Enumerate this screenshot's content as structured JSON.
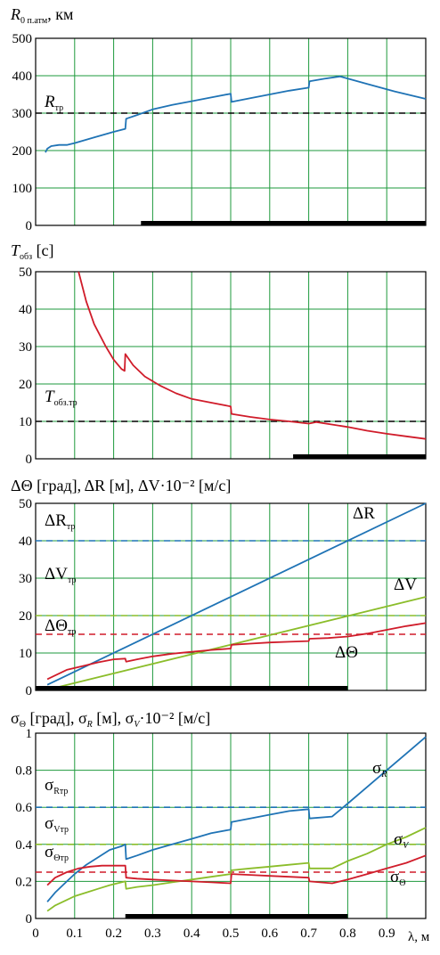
{
  "colors": {
    "grid": "#1e9a3c",
    "blue": "#1f73b5",
    "red": "#d01c2a",
    "green": "#8bbd2a",
    "black": "#000000"
  },
  "chart_data": [
    {
      "type": "line",
      "title": "R",
      "title_sub": "0 п.атм",
      "title_rest": ", км",
      "xlim": [
        0,
        1
      ],
      "ylim": [
        0,
        500
      ],
      "yticks": [
        "0",
        "100",
        "200",
        "300",
        "400",
        "500"
      ],
      "series": [
        {
          "color": "#1f73b5",
          "x": [
            0.025,
            0.03,
            0.04,
            0.06,
            0.08,
            0.1,
            0.15,
            0.2,
            0.23,
            0.232,
            0.26,
            0.3,
            0.35,
            0.4,
            0.45,
            0.5,
            0.502,
            0.55,
            0.6,
            0.65,
            0.7,
            0.702,
            0.74,
            0.78,
            0.85,
            0.92,
            1.0
          ],
          "y": [
            195,
            205,
            212,
            215,
            215,
            220,
            235,
            250,
            258,
            285,
            295,
            310,
            322,
            332,
            342,
            352,
            330,
            340,
            350,
            360,
            368,
            385,
            392,
            398,
            378,
            358,
            338
          ]
        }
      ],
      "hlines": [
        {
          "y": 300,
          "color": "#000000",
          "label": "R",
          "label_sub": "тр"
        }
      ],
      "bar": [
        0.27,
        1.0
      ]
    },
    {
      "type": "line",
      "title": "T",
      "title_sub": "обз",
      "title_rest": " [с]",
      "xlim": [
        0,
        1
      ],
      "ylim": [
        0,
        50
      ],
      "yticks": [
        "0",
        "10",
        "20",
        "30",
        "40",
        "50"
      ],
      "series": [
        {
          "color": "#d01c2a",
          "x": [
            0.11,
            0.13,
            0.15,
            0.18,
            0.2,
            0.22,
            0.228,
            0.23,
            0.25,
            0.28,
            0.32,
            0.36,
            0.4,
            0.45,
            0.5,
            0.502,
            0.55,
            0.6,
            0.65,
            0.7,
            0.72,
            0.8,
            0.85,
            0.9,
            0.95,
            1.0
          ],
          "y": [
            50,
            42,
            36,
            30,
            26.5,
            24,
            23.5,
            28,
            25,
            22,
            19.5,
            17.5,
            16,
            15,
            14,
            12,
            11.2,
            10.5,
            10,
            9.4,
            9.8,
            8.5,
            7.5,
            6.7,
            6,
            5.3
          ]
        }
      ],
      "hlines": [
        {
          "y": 10,
          "color": "#000000",
          "label": "T",
          "label_sub": "обз.тр"
        }
      ],
      "bar": [
        0.66,
        1.0
      ]
    },
    {
      "type": "line",
      "title": "ΔΘ [град], ΔR [м], ΔV·10⁻² [м/с]",
      "xlim": [
        0,
        1
      ],
      "ylim": [
        0,
        50
      ],
      "yticks": [
        "0",
        "10",
        "20",
        "30",
        "40",
        "50"
      ],
      "series": [
        {
          "name": "ΔR",
          "color": "#1f73b5",
          "x": [
            0.03,
            1.0
          ],
          "y": [
            1.5,
            50
          ]
        },
        {
          "name": "ΔV",
          "color": "#8bbd2a",
          "x": [
            0.03,
            1.0
          ],
          "y": [
            0.2,
            25
          ]
        },
        {
          "name": "ΔΘ",
          "color": "#d01c2a",
          "x": [
            0.03,
            0.05,
            0.08,
            0.12,
            0.16,
            0.2,
            0.23,
            0.232,
            0.26,
            0.3,
            0.35,
            0.4,
            0.45,
            0.5,
            0.502,
            0.55,
            0.6,
            0.65,
            0.7,
            0.702,
            0.75,
            0.8,
            0.85,
            0.9,
            0.95,
            1.0
          ],
          "y": [
            3,
            4,
            5.5,
            6.5,
            7.5,
            8.3,
            8.5,
            7.7,
            8.3,
            9.1,
            9.8,
            10.3,
            10.8,
            11.2,
            12.2,
            12.5,
            12.8,
            13.0,
            13.2,
            13.8,
            14.0,
            14.4,
            15.2,
            16.2,
            17.2,
            18
          ]
        }
      ],
      "hlines": [
        {
          "y": 40,
          "color": "#1f73b5",
          "label": "ΔR",
          "label_sub": "тр"
        },
        {
          "y": 20,
          "color": "#8bbd2a",
          "label": "ΔV",
          "label_sub": "тр"
        },
        {
          "y": 15,
          "color": "#d01c2a",
          "label": "ΔΘ",
          "label_sub": "тр"
        }
      ],
      "curve_labels": [
        "ΔR",
        "ΔV",
        "ΔΘ"
      ],
      "bar": [
        0.0,
        0.8
      ]
    },
    {
      "type": "line",
      "title": "σ",
      "title_sub": "Θ",
      "title_rest": " [град], σ",
      "title_sub2": "R",
      "title_rest2": " [м], σ",
      "title_sub3": "V",
      "title_rest3": "·10⁻² [м/с]",
      "xlabel": "λ, м",
      "xlim": [
        0,
        1
      ],
      "ylim": [
        0,
        1
      ],
      "xticks": [
        "0",
        "0.1",
        "0.2",
        "0.3",
        "0.4",
        "0.5",
        "0.6",
        "0.7",
        "0.8",
        "0.9"
      ],
      "yticks": [
        "0",
        "0.2",
        "0.4",
        "0.6",
        "0.8",
        "1"
      ],
      "series": [
        {
          "name": "σR",
          "color": "#1f73b5",
          "x": [
            0.03,
            0.05,
            0.08,
            0.1,
            0.13,
            0.16,
            0.19,
            0.22,
            0.23,
            0.232,
            0.26,
            0.3,
            0.35,
            0.4,
            0.45,
            0.5,
            0.502,
            0.55,
            0.6,
            0.65,
            0.7,
            0.702,
            0.76,
            0.8,
            0.85,
            0.9,
            0.95,
            1.0
          ],
          "y": [
            0.09,
            0.14,
            0.2,
            0.24,
            0.29,
            0.33,
            0.37,
            0.39,
            0.4,
            0.32,
            0.34,
            0.37,
            0.4,
            0.43,
            0.46,
            0.48,
            0.52,
            0.54,
            0.56,
            0.58,
            0.59,
            0.54,
            0.55,
            0.62,
            0.71,
            0.8,
            0.89,
            0.98
          ]
        },
        {
          "name": "σV",
          "color": "#8bbd2a",
          "x": [
            0.03,
            0.05,
            0.08,
            0.1,
            0.13,
            0.16,
            0.19,
            0.22,
            0.23,
            0.232,
            0.26,
            0.3,
            0.35,
            0.4,
            0.45,
            0.5,
            0.502,
            0.55,
            0.6,
            0.65,
            0.7,
            0.702,
            0.76,
            0.8,
            0.85,
            0.9,
            0.95,
            1.0
          ],
          "y": [
            0.04,
            0.07,
            0.1,
            0.12,
            0.14,
            0.16,
            0.18,
            0.195,
            0.2,
            0.16,
            0.17,
            0.18,
            0.195,
            0.21,
            0.225,
            0.24,
            0.26,
            0.27,
            0.28,
            0.29,
            0.3,
            0.27,
            0.27,
            0.31,
            0.35,
            0.4,
            0.44,
            0.49
          ]
        },
        {
          "name": "σΘ",
          "color": "#d01c2a",
          "x": [
            0.03,
            0.05,
            0.08,
            0.11,
            0.14,
            0.17,
            0.2,
            0.23,
            0.232,
            0.26,
            0.3,
            0.35,
            0.4,
            0.45,
            0.5,
            0.502,
            0.55,
            0.6,
            0.65,
            0.7,
            0.702,
            0.76,
            0.8,
            0.85,
            0.9,
            0.95,
            1.0
          ],
          "y": [
            0.18,
            0.22,
            0.25,
            0.27,
            0.28,
            0.285,
            0.285,
            0.285,
            0.22,
            0.215,
            0.21,
            0.205,
            0.2,
            0.195,
            0.19,
            0.24,
            0.235,
            0.23,
            0.225,
            0.22,
            0.2,
            0.19,
            0.21,
            0.24,
            0.27,
            0.3,
            0.34
          ]
        }
      ],
      "hlines": [
        {
          "y": 0.6,
          "color": "#1f73b5",
          "label": "σ",
          "label_sub": "Rтр"
        },
        {
          "y": 0.4,
          "color": "#8bbd2a",
          "label": "σ",
          "label_sub": "Vтр"
        },
        {
          "y": 0.25,
          "color": "#d01c2a",
          "label": "σ",
          "label_sub": "Θтр"
        }
      ],
      "curve_labels": [
        "σR",
        "σV",
        "σΘ"
      ],
      "bar": [
        0.23,
        0.8
      ]
    }
  ]
}
